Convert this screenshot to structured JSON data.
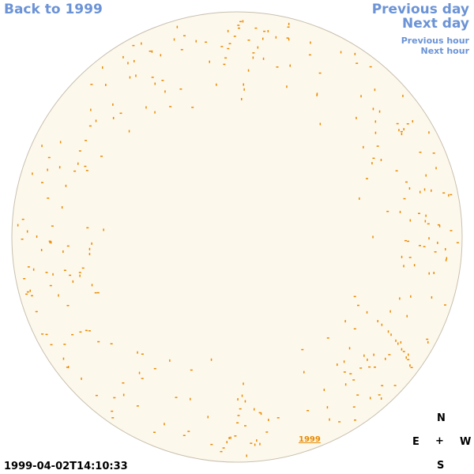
{
  "nav": {
    "back_label": "Back to 1999",
    "previous_day_label": "Previous day",
    "next_day_label": "Next day",
    "previous_hour_label": "Previous hour",
    "next_hour_label": "Next hour"
  },
  "disk": {
    "year_label": "1999",
    "fill_color": "#fdf8ec",
    "outline_color": "#c8c0b0",
    "feature_color": "#e88a00"
  },
  "compass": {
    "north": "N",
    "south": "S",
    "east": "E",
    "west": "W",
    "center": "+"
  },
  "timestamp": "1999-04-02T14:10:33",
  "colors": {
    "link": "#6b93d6",
    "year_link": "#e88a00",
    "text": "#000000"
  }
}
